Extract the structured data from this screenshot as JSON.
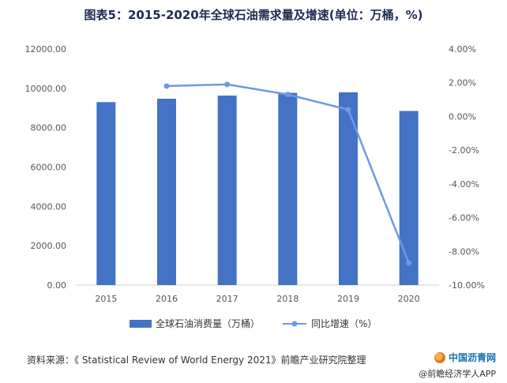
{
  "title": "图表5：2015-2020年全球石油需求量及增速(单位：万桶，%)",
  "chart_data": {
    "type": "bar",
    "categories": [
      "2015",
      "2016",
      "2017",
      "2018",
      "2019",
      "2020"
    ],
    "series": [
      {
        "name": "全球石油消费量（万桶）",
        "type": "bar",
        "axis": "left",
        "color": "#4472C4",
        "values": [
          9300,
          9470,
          9630,
          9770,
          9800,
          8850
        ]
      },
      {
        "name": "同比增速（%）",
        "type": "line",
        "axis": "right",
        "color": "#6f98e6",
        "values": [
          null,
          1.8,
          1.9,
          1.3,
          0.4,
          -8.7
        ]
      }
    ],
    "y_left": {
      "min": 0,
      "max": 12000,
      "step": 2000,
      "ticks": [
        "0.00",
        "2000.00",
        "4000.00",
        "6000.00",
        "8000.00",
        "10000.00",
        "12000.00"
      ]
    },
    "y_right": {
      "min": -10,
      "max": 4,
      "step": 2,
      "ticks": [
        "-10.00%",
        "-8.00%",
        "-6.00%",
        "-4.00%",
        "-2.00%",
        "0.00%",
        "2.00%",
        "4.00%"
      ]
    },
    "grid": false,
    "legend_position": "bottom"
  },
  "source": "资料来源：《 Statistical Review of World Energy 2021》前瞻产业研究院整理",
  "brand": "中国沥青网",
  "app": "@前瞻经济学人APP"
}
